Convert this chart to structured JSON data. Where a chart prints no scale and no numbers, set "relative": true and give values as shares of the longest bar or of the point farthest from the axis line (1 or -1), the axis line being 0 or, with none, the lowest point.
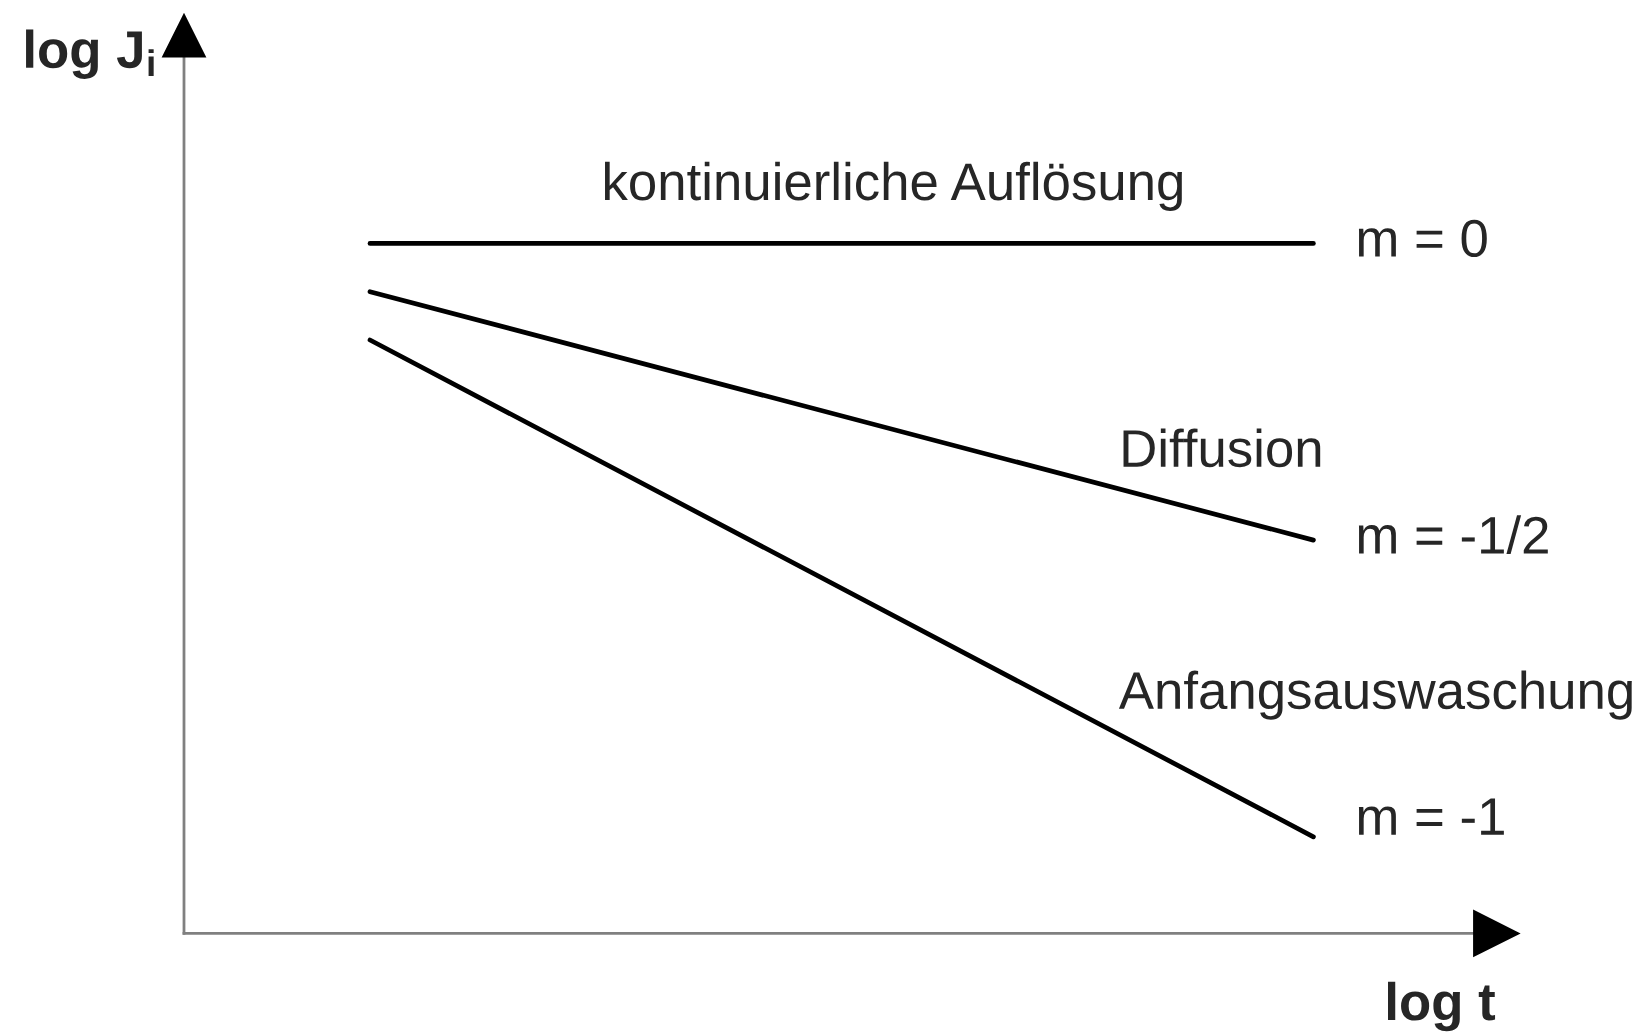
{
  "chart_data": {
    "type": "line",
    "relative": true,
    "xlabel": "log t",
    "ylabel": "log J$_{i}$",
    "categories": [
      null,
      null
    ],
    "series": [
      {
        "name": "kontinuierliche Auflösung",
        "color": "#000000",
        "values": [
          1,
          1
        ]
      },
      {
        "name": "Diffusion",
        "color": "#000000",
        "values": [
          0.93,
          0.57
        ]
      },
      {
        "name": "Anfangsauswaschung",
        "color": "#000000",
        "values": [
          0.86,
          0.14
        ]
      }
    ],
    "annotations": [
      "m = 0",
      "m = -1/2",
      "m = -1"
    ],
    "grid": false,
    "legend": false,
    "marker": "none",
    "line_style": "solid"
  }
}
